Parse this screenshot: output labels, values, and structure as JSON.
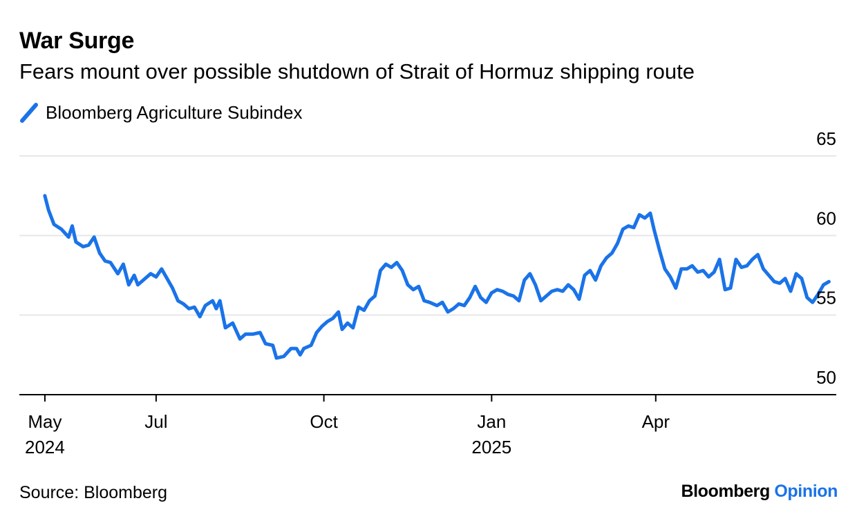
{
  "header": {
    "title": "War Surge",
    "subtitle": "Fears mount over possible shutdown of Strait of Hormuz shipping route"
  },
  "legend": {
    "label": "Bloomberg Agriculture Subindex"
  },
  "footer": {
    "source": "Source: Bloomberg",
    "brand_main": "Bloomberg",
    "brand_accent": "Opinion"
  },
  "colors": {
    "series": "#1a73e8",
    "grid": "#e6e6e6",
    "axis": "#000000"
  },
  "chart_data": {
    "type": "line",
    "title": "War Surge",
    "subtitle": "Fears mount over possible shutdown of Strait of Hormuz shipping route",
    "xlabel": "",
    "ylabel": "",
    "ylim": [
      50,
      65
    ],
    "y_ticks": [
      50,
      55,
      60,
      65
    ],
    "y_axis_side": "right",
    "grid": true,
    "legend_placement": "top-left",
    "x_ticks": [
      {
        "date": "2024-05-01",
        "label": "May",
        "year": "2024"
      },
      {
        "date": "2024-07-01",
        "label": "Jul",
        "year": ""
      },
      {
        "date": "2024-10-01",
        "label": "Oct",
        "year": ""
      },
      {
        "date": "2025-01-01",
        "label": "Jan",
        "year": "2025"
      },
      {
        "date": "2025-04-01",
        "label": "Apr",
        "year": ""
      }
    ],
    "x_domain": [
      "2024-04-17",
      "2025-07-09"
    ],
    "series": [
      {
        "name": "Bloomberg Agriculture Subindex",
        "color": "#1a73e8",
        "points": [
          [
            "2024-05-01",
            62.5
          ],
          [
            "2024-05-03",
            61.6
          ],
          [
            "2024-05-06",
            60.7
          ],
          [
            "2024-05-10",
            60.4
          ],
          [
            "2024-05-14",
            59.9
          ],
          [
            "2024-05-16",
            60.6
          ],
          [
            "2024-05-18",
            59.6
          ],
          [
            "2024-05-22",
            59.3
          ],
          [
            "2024-05-25",
            59.4
          ],
          [
            "2024-05-28",
            59.9
          ],
          [
            "2024-05-31",
            58.9
          ],
          [
            "2024-06-03",
            58.4
          ],
          [
            "2024-06-06",
            58.3
          ],
          [
            "2024-06-10",
            57.6
          ],
          [
            "2024-06-13",
            58.2
          ],
          [
            "2024-06-16",
            56.9
          ],
          [
            "2024-06-19",
            57.5
          ],
          [
            "2024-06-21",
            56.9
          ],
          [
            "2024-06-25",
            57.3
          ],
          [
            "2024-06-28",
            57.6
          ],
          [
            "2024-07-01",
            57.4
          ],
          [
            "2024-07-04",
            57.9
          ],
          [
            "2024-07-07",
            57.3
          ],
          [
            "2024-07-10",
            56.7
          ],
          [
            "2024-07-13",
            55.9
          ],
          [
            "2024-07-16",
            55.7
          ],
          [
            "2024-07-19",
            55.4
          ],
          [
            "2024-07-22",
            55.5
          ],
          [
            "2024-07-25",
            54.9
          ],
          [
            "2024-07-28",
            55.6
          ],
          [
            "2024-08-01",
            55.9
          ],
          [
            "2024-08-03",
            55.4
          ],
          [
            "2024-08-05",
            55.9
          ],
          [
            "2024-08-08",
            54.2
          ],
          [
            "2024-08-12",
            54.5
          ],
          [
            "2024-08-16",
            53.5
          ],
          [
            "2024-08-19",
            53.8
          ],
          [
            "2024-08-23",
            53.8
          ],
          [
            "2024-08-27",
            53.9
          ],
          [
            "2024-08-30",
            53.2
          ],
          [
            "2024-09-03",
            53.1
          ],
          [
            "2024-09-05",
            52.3
          ],
          [
            "2024-09-09",
            52.4
          ],
          [
            "2024-09-13",
            52.9
          ],
          [
            "2024-09-16",
            52.9
          ],
          [
            "2024-09-18",
            52.5
          ],
          [
            "2024-09-20",
            52.9
          ],
          [
            "2024-09-24",
            53.1
          ],
          [
            "2024-09-27",
            53.9
          ],
          [
            "2024-09-30",
            54.3
          ],
          [
            "2024-10-03",
            54.6
          ],
          [
            "2024-10-06",
            54.8
          ],
          [
            "2024-10-09",
            55.2
          ],
          [
            "2024-10-11",
            54.1
          ],
          [
            "2024-10-14",
            54.5
          ],
          [
            "2024-10-17",
            54.2
          ],
          [
            "2024-10-20",
            55.5
          ],
          [
            "2024-10-23",
            55.3
          ],
          [
            "2024-10-26",
            55.9
          ],
          [
            "2024-10-29",
            56.2
          ],
          [
            "2024-11-01",
            57.8
          ],
          [
            "2024-11-04",
            58.2
          ],
          [
            "2024-11-07",
            58.0
          ],
          [
            "2024-11-10",
            58.3
          ],
          [
            "2024-11-13",
            57.8
          ],
          [
            "2024-11-16",
            56.9
          ],
          [
            "2024-11-19",
            56.6
          ],
          [
            "2024-11-22",
            56.8
          ],
          [
            "2024-11-25",
            55.9
          ],
          [
            "2024-11-28",
            55.8
          ],
          [
            "2024-12-02",
            55.6
          ],
          [
            "2024-12-05",
            55.8
          ],
          [
            "2024-12-08",
            55.2
          ],
          [
            "2024-12-11",
            55.4
          ],
          [
            "2024-12-14",
            55.7
          ],
          [
            "2024-12-17",
            55.6
          ],
          [
            "2024-12-20",
            56.1
          ],
          [
            "2024-12-23",
            56.8
          ],
          [
            "2024-12-26",
            56.1
          ],
          [
            "2024-12-29",
            55.8
          ],
          [
            "2025-01-01",
            56.4
          ],
          [
            "2025-01-04",
            56.6
          ],
          [
            "2025-01-07",
            56.5
          ],
          [
            "2025-01-10",
            56.3
          ],
          [
            "2025-01-13",
            56.2
          ],
          [
            "2025-01-16",
            55.9
          ],
          [
            "2025-01-19",
            57.2
          ],
          [
            "2025-01-22",
            57.6
          ],
          [
            "2025-01-25",
            56.9
          ],
          [
            "2025-01-28",
            55.9
          ],
          [
            "2025-01-31",
            56.2
          ],
          [
            "2025-02-03",
            56.5
          ],
          [
            "2025-02-06",
            56.6
          ],
          [
            "2025-02-09",
            56.5
          ],
          [
            "2025-02-12",
            56.9
          ],
          [
            "2025-02-15",
            56.6
          ],
          [
            "2025-02-18",
            56.0
          ],
          [
            "2025-02-21",
            57.5
          ],
          [
            "2025-02-24",
            57.8
          ],
          [
            "2025-02-27",
            57.2
          ],
          [
            "2025-03-02",
            58.1
          ],
          [
            "2025-03-05",
            58.6
          ],
          [
            "2025-03-08",
            58.9
          ],
          [
            "2025-03-11",
            59.5
          ],
          [
            "2025-03-14",
            60.4
          ],
          [
            "2025-03-17",
            60.6
          ],
          [
            "2025-03-20",
            60.5
          ],
          [
            "2025-03-23",
            61.3
          ],
          [
            "2025-03-26",
            61.1
          ],
          [
            "2025-03-29",
            61.4
          ],
          [
            "2025-03-31",
            60.4
          ],
          [
            "2025-04-03",
            59.1
          ],
          [
            "2025-04-06",
            57.9
          ],
          [
            "2025-04-09",
            57.4
          ],
          [
            "2025-04-12",
            56.7
          ],
          [
            "2025-04-15",
            57.9
          ],
          [
            "2025-04-18",
            57.9
          ],
          [
            "2025-04-21",
            58.1
          ],
          [
            "2025-04-24",
            57.7
          ],
          [
            "2025-04-27",
            57.8
          ],
          [
            "2025-04-30",
            57.4
          ],
          [
            "2025-05-03",
            57.7
          ],
          [
            "2025-05-06",
            58.5
          ],
          [
            "2025-05-09",
            56.6
          ],
          [
            "2025-05-12",
            56.7
          ],
          [
            "2025-05-15",
            58.5
          ],
          [
            "2025-05-18",
            58.0
          ],
          [
            "2025-05-21",
            58.1
          ],
          [
            "2025-05-24",
            58.5
          ],
          [
            "2025-05-27",
            58.8
          ],
          [
            "2025-05-30",
            57.9
          ],
          [
            "2025-06-02",
            57.5
          ],
          [
            "2025-06-05",
            57.1
          ],
          [
            "2025-06-08",
            57.0
          ],
          [
            "2025-06-11",
            57.3
          ],
          [
            "2025-06-14",
            56.5
          ],
          [
            "2025-06-17",
            57.6
          ],
          [
            "2025-06-20",
            57.3
          ],
          [
            "2025-06-23",
            56.1
          ],
          [
            "2025-06-26",
            55.8
          ],
          [
            "2025-06-29",
            56.3
          ],
          [
            "2025-07-02",
            56.9
          ],
          [
            "2025-07-05",
            57.1
          ]
        ]
      }
    ]
  }
}
